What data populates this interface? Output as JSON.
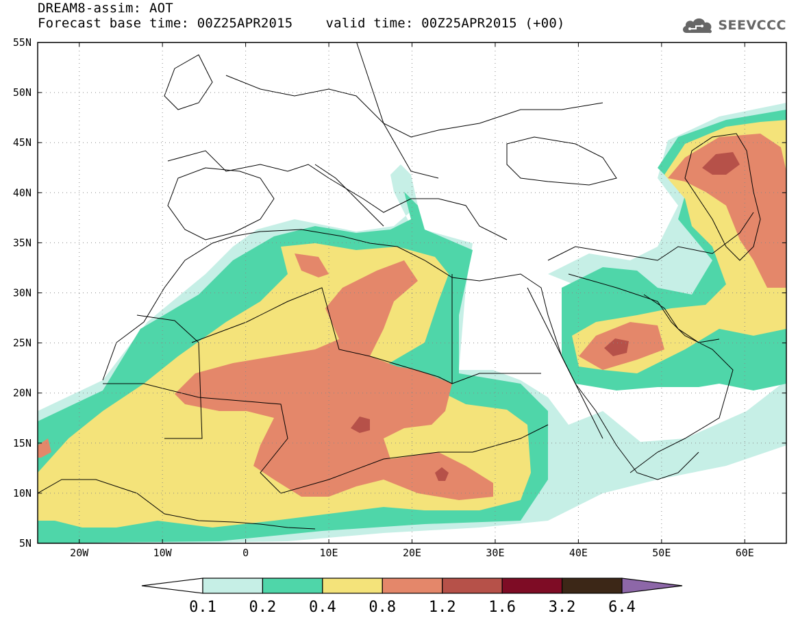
{
  "header": {
    "title_line1": "DREAM8-assim: AOT",
    "base_time": "Forecast base time: 00Z25APR2015",
    "valid_time": "valid time: 00Z25APR2015 (+00)",
    "logo_text": "SEEVCCC",
    "logo_icon": "cloud-icon"
  },
  "map": {
    "lon_range": [
      -25,
      65
    ],
    "lat_range": [
      5,
      55
    ],
    "lat_ticks": [
      {
        "value": 5,
        "label": "5N"
      },
      {
        "value": 10,
        "label": "10N"
      },
      {
        "value": 15,
        "label": "15N"
      },
      {
        "value": 20,
        "label": "20N"
      },
      {
        "value": 25,
        "label": "25N"
      },
      {
        "value": 30,
        "label": "30N"
      },
      {
        "value": 35,
        "label": "35N"
      },
      {
        "value": 40,
        "label": "40N"
      },
      {
        "value": 45,
        "label": "45N"
      },
      {
        "value": 50,
        "label": "50N"
      },
      {
        "value": 55,
        "label": "55N"
      }
    ],
    "lon_ticks": [
      {
        "value": -20,
        "label": "20W"
      },
      {
        "value": -10,
        "label": "10W"
      },
      {
        "value": 0,
        "label": "0"
      },
      {
        "value": 10,
        "label": "10E"
      },
      {
        "value": 20,
        "label": "20E"
      },
      {
        "value": 30,
        "label": "30E"
      },
      {
        "value": 40,
        "label": "40E"
      },
      {
        "value": 50,
        "label": "50E"
      },
      {
        "value": 60,
        "label": "60E"
      }
    ],
    "gridlines": "dotted"
  },
  "colorbar": {
    "levels": [
      "0.1",
      "0.2",
      "0.4",
      "0.8",
      "1.2",
      "1.6",
      "3.2",
      "6.4"
    ],
    "colors": [
      "#c6efe6",
      "#4fd6a9",
      "#f4e37a",
      "#e4876a",
      "#b65149",
      "#7e0c25",
      "#3c2717"
    ],
    "under_color": "#ffffff",
    "over_color": "#8d67a8"
  },
  "colors": {
    "c01": "#c6efe6",
    "c02": "#4fd6a9",
    "c04": "#f4e37a",
    "c08": "#e4876a",
    "c12": "#b65149",
    "c16": "#7e0c25"
  }
}
